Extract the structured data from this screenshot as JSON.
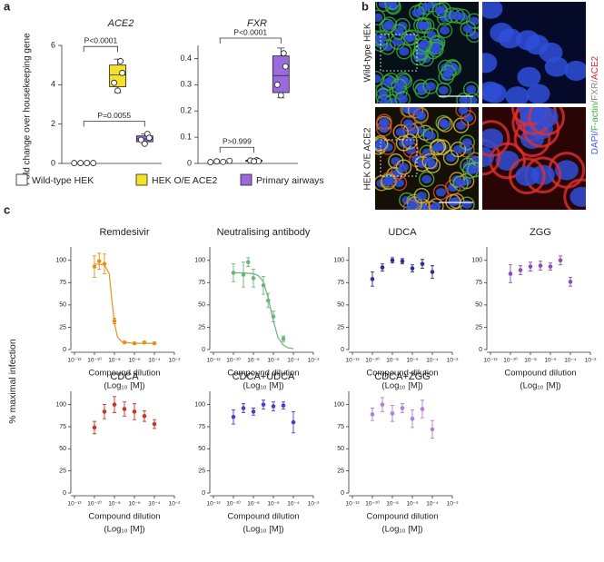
{
  "panels": [
    "a",
    "b",
    "c"
  ],
  "images": {
    "rows": [
      "Wild-type HEK",
      "HEK O/E ACE2"
    ],
    "stains": [
      {
        "text": "DAPI/",
        "color": "#3a5bd9"
      },
      {
        "text": "F-actin/",
        "color": "#3aa83a"
      },
      {
        "text": "FXR/",
        "color": "#888888"
      },
      {
        "text": "ACE2",
        "color": "#d62828"
      }
    ]
  },
  "chart_data": [
    {
      "type": "box",
      "title": "ACE2",
      "y_label": "Fold change over housekeeping gene",
      "ylim": [
        0,
        6
      ],
      "yticks": [
        0,
        2,
        4,
        6
      ],
      "series": [
        {
          "name": "Wild-type HEK",
          "color": "#ffffff",
          "values": [
            0.02,
            0.02,
            0.02,
            0.02
          ]
        },
        {
          "name": "HEK O/E ACE2",
          "color": "#f5e12a",
          "values": [
            5.2,
            4.6,
            4.1,
            3.7
          ],
          "box": [
            3.6,
            3.9,
            4.5,
            5.0,
            5.3
          ]
        },
        {
          "name": "Primary airways",
          "color": "#9b6bde",
          "values": [
            1.5,
            1.3,
            1.2,
            1.0
          ],
          "box": [
            1.0,
            1.1,
            1.25,
            1.4,
            1.5
          ]
        }
      ],
      "annotations": [
        "P<0.0001",
        "P=0.0055"
      ]
    },
    {
      "type": "box",
      "title": "FXR",
      "ylim": [
        0,
        0.45
      ],
      "yticks": [
        0,
        0.1,
        0.2,
        0.3,
        0.4
      ],
      "series": [
        {
          "color": "#ffffff",
          "values": [
            0.005,
            0.008,
            0.006,
            0.01
          ]
        },
        {
          "color": "#f5e12a",
          "values": [
            0.012,
            0.009,
            0.011,
            0.008
          ],
          "box": [
            0.007,
            0.008,
            0.01,
            0.012,
            0.013
          ]
        },
        {
          "color": "#9b6bde",
          "values": [
            0.42,
            0.37,
            0.3,
            0.26
          ],
          "box": [
            0.25,
            0.27,
            0.335,
            0.41,
            0.44
          ]
        }
      ],
      "annotations": [
        "P<0.0001",
        "P>0.999"
      ]
    },
    {
      "type": "dose_response",
      "title": "Remdesivir",
      "y_label": "% maximal infection",
      "color": "#e8901c",
      "xscale": "log",
      "x": [
        1e-10,
        3e-10,
        1e-09,
        1e-08,
        1e-07,
        1e-06,
        1e-05,
        0.0001
      ],
      "values": [
        93,
        99,
        96,
        32,
        8,
        7,
        8,
        7
      ],
      "errors": [
        12,
        9,
        11,
        3,
        1,
        1,
        1,
        1
      ],
      "fit": {
        "x": [
          1e-10,
          1e-09,
          3e-09,
          5e-09,
          1e-08,
          2e-08,
          5e-08,
          1e-07,
          1e-06,
          1e-05,
          0.0001
        ],
        "values": [
          96,
          95,
          85,
          60,
          30,
          14,
          9,
          8,
          7,
          7,
          7
        ]
      },
      "xlim": [
        1e-12,
        0.01
      ],
      "xticks": [
        {
          "value": 1e-12,
          "label": "10⁻¹²"
        },
        {
          "value": 1e-10,
          "label": "10⁻¹⁰"
        },
        {
          "value": 1e-08,
          "label": "10⁻⁸"
        },
        {
          "value": 1e-06,
          "label": "10⁻⁶"
        },
        {
          "value": 0.0001,
          "label": "10⁻⁴"
        },
        {
          "value": 0.01,
          "label": "10⁻²"
        }
      ],
      "ylim": [
        0,
        115
      ],
      "yticks": [
        0,
        25,
        50,
        75,
        100
      ],
      "x_label": [
        "Compound dilution",
        "(Log₁₀ [M])"
      ]
    },
    {
      "type": "dose_response",
      "title": "Neutralising antibody",
      "color": "#6db37a",
      "xscale": "log",
      "x": [
        1e-10,
        1e-09,
        3e-09,
        1e-08,
        1e-07,
        3e-07,
        1e-06,
        1e-05
      ],
      "values": [
        86,
        84,
        98,
        80,
        72,
        55,
        37,
        12
      ],
      "errors": [
        10,
        14,
        5,
        10,
        10,
        8,
        6,
        3
      ],
      "fit": {
        "x": [
          1e-10,
          1e-09,
          1e-08,
          3e-08,
          1e-07,
          3e-07,
          1e-06,
          3e-06,
          1e-05,
          3e-05,
          0.0001
        ],
        "values": [
          86,
          86,
          85,
          83,
          76,
          58,
          32,
          13,
          5,
          2,
          1
        ]
      },
      "xlim": [
        1e-12,
        0.01
      ],
      "xticks": [
        {
          "value": 1e-12,
          "label": "10⁻¹²"
        },
        {
          "value": 1e-10,
          "label": "10⁻¹⁰"
        },
        {
          "value": 1e-08,
          "label": "10⁻⁸"
        },
        {
          "value": 1e-06,
          "label": "10⁻⁶"
        },
        {
          "value": 0.0001,
          "label": "10⁻⁴"
        },
        {
          "value": 0.01,
          "label": "10⁻²"
        }
      ],
      "ylim": [
        0,
        115
      ],
      "yticks": [
        0,
        25,
        50,
        75,
        100
      ],
      "x_label": [
        "Compound dilution",
        "(Log₁₀ [M])"
      ]
    },
    {
      "type": "dose_response",
      "title": "UDCA",
      "color": "#2e2e8f",
      "xscale": "log",
      "x": [
        1e-10,
        1e-09,
        1e-08,
        1e-07,
        1e-06,
        1e-05,
        0.0001
      ],
      "values": [
        79,
        92,
        100,
        99,
        91,
        96,
        87
      ],
      "errors": [
        8,
        4,
        3,
        3,
        4,
        5,
        7
      ],
      "xlim": [
        1e-12,
        0.01
      ],
      "xticks": [
        {
          "value": 1e-12,
          "label": "10⁻¹²"
        },
        {
          "value": 1e-10,
          "label": "10⁻¹⁰"
        },
        {
          "value": 1e-08,
          "label": "10⁻⁸"
        },
        {
          "value": 1e-06,
          "label": "10⁻⁶"
        },
        {
          "value": 0.0001,
          "label": "10⁻⁴"
        },
        {
          "value": 0.01,
          "label": "10⁻²"
        }
      ],
      "ylim": [
        0,
        115
      ],
      "yticks": [
        0,
        25,
        50,
        75,
        100
      ],
      "x_label": [
        "Compound dilution",
        "(Log₁₀ [M])"
      ]
    },
    {
      "type": "dose_response",
      "title": "ZGG",
      "color": "#8a4fb5",
      "xscale": "log",
      "x": [
        1e-10,
        1e-09,
        1e-08,
        1e-07,
        1e-06,
        1e-05,
        0.0001
      ],
      "values": [
        85,
        89,
        93,
        94,
        93,
        100,
        76
      ],
      "errors": [
        10,
        5,
        5,
        5,
        4,
        5,
        5
      ],
      "xlim": [
        1e-12,
        0.01
      ],
      "xticks": [
        {
          "value": 1e-12,
          "label": "10⁻¹²"
        },
        {
          "value": 1e-10,
          "label": "10⁻¹⁰"
        },
        {
          "value": 1e-08,
          "label": "10⁻⁸"
        },
        {
          "value": 1e-06,
          "label": "10⁻⁶"
        },
        {
          "value": 0.0001,
          "label": "10⁻⁴"
        },
        {
          "value": 0.01,
          "label": "10⁻²"
        }
      ],
      "ylim": [
        0,
        115
      ],
      "yticks": [
        0,
        25,
        50,
        75,
        100
      ],
      "x_label": [
        "Compound dilution",
        "(Log₁₀ [M])"
      ]
    },
    {
      "type": "dose_response",
      "title": "CDCA",
      "color": "#c0392b",
      "xscale": "log",
      "x": [
        1e-10,
        1e-09,
        1e-08,
        1e-07,
        1e-06,
        1e-05,
        0.0001
      ],
      "values": [
        74,
        92,
        100,
        95,
        92,
        87,
        78
      ],
      "errors": [
        7,
        8,
        9,
        8,
        9,
        6,
        5
      ],
      "xlim": [
        1e-12,
        0.01
      ],
      "xticks": [
        {
          "value": 1e-12,
          "label": "10⁻¹²"
        },
        {
          "value": 1e-10,
          "label": "10⁻¹⁰"
        },
        {
          "value": 1e-08,
          "label": "10⁻⁸"
        },
        {
          "value": 1e-06,
          "label": "10⁻⁶"
        },
        {
          "value": 0.0001,
          "label": "10⁻⁴"
        },
        {
          "value": 0.01,
          "label": "10⁻²"
        }
      ],
      "ylim": [
        0,
        115
      ],
      "yticks": [
        0,
        25,
        50,
        75,
        100
      ],
      "x_label": [
        "Compound dilution",
        "(Log₁₀ [M])"
      ]
    },
    {
      "type": "dose_response",
      "title": "CDCA+UDCA",
      "color": "#4a3fbf",
      "xscale": "log",
      "x": [
        1e-10,
        1e-09,
        1e-08,
        1e-07,
        1e-06,
        1e-05,
        0.0001
      ],
      "values": [
        86,
        96,
        92,
        100,
        98,
        99,
        80
      ],
      "errors": [
        8,
        5,
        4,
        5,
        5,
        4,
        12
      ],
      "xlim": [
        1e-12,
        0.01
      ],
      "xticks": [
        {
          "value": 1e-12,
          "label": "10⁻¹²"
        },
        {
          "value": 1e-10,
          "label": "10⁻¹⁰"
        },
        {
          "value": 1e-08,
          "label": "10⁻⁸"
        },
        {
          "value": 1e-06,
          "label": "10⁻⁶"
        },
        {
          "value": 0.0001,
          "label": "10⁻⁴"
        },
        {
          "value": 0.01,
          "label": "10⁻²"
        }
      ],
      "ylim": [
        0,
        115
      ],
      "yticks": [
        0,
        25,
        50,
        75,
        100
      ],
      "x_label": [
        "Compound dilution",
        "(Log₁₀ [M])"
      ]
    },
    {
      "type": "dose_response",
      "title": "CDCA+ZGG",
      "color": "#b07fd6",
      "xscale": "log",
      "x": [
        1e-10,
        1e-09,
        1e-08,
        1e-07,
        1e-06,
        1e-05,
        0.0001
      ],
      "values": [
        89,
        100,
        90,
        96,
        84,
        95,
        72
      ],
      "errors": [
        7,
        8,
        9,
        5,
        10,
        10,
        10
      ],
      "xlim": [
        1e-12,
        0.01
      ],
      "xticks": [
        {
          "value": 1e-12,
          "label": "10⁻¹²"
        },
        {
          "value": 1e-10,
          "label": "10⁻¹⁰"
        },
        {
          "value": 1e-08,
          "label": "10⁻⁸"
        },
        {
          "value": 1e-06,
          "label": "10⁻⁶"
        },
        {
          "value": 0.0001,
          "label": "10⁻⁴"
        },
        {
          "value": 0.01,
          "label": "10⁻²"
        }
      ],
      "ylim": [
        0,
        115
      ],
      "yticks": [
        0,
        25,
        50,
        75,
        100
      ],
      "x_label": [
        "Compound dilution",
        "(Log₁₀ [M])"
      ]
    }
  ]
}
